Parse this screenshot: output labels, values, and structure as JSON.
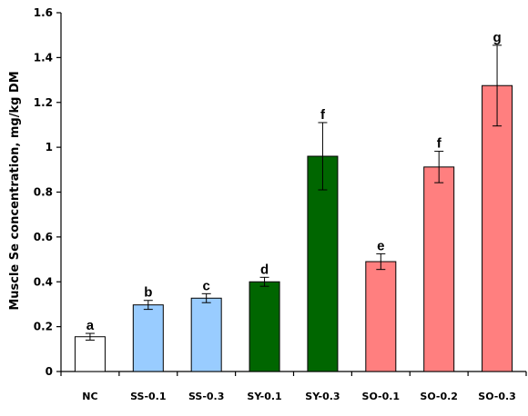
{
  "chart_data": {
    "type": "bar",
    "title": "",
    "xlabel": "",
    "ylabel": "Muscle Se concentration, mg/kg DM",
    "ylim": [
      0,
      1.6
    ],
    "yticks": [
      "0",
      "0.2",
      "0.4",
      "0.6",
      "0.8",
      "1",
      "1.2",
      "1.4",
      "1.6"
    ],
    "grid": false,
    "categories": [
      "NC",
      "SS-0.1",
      "SS-0.3",
      "SY-0.1",
      "SY-0.3",
      "SO-0.1",
      "SO-0.2",
      "SO-0.3"
    ],
    "values": [
      0.155,
      0.297,
      0.327,
      0.4,
      0.96,
      0.49,
      0.912,
      1.275
    ],
    "errors": [
      0.015,
      0.02,
      0.02,
      0.02,
      0.15,
      0.035,
      0.07,
      0.18
    ],
    "significance": [
      "a",
      "b",
      "c",
      "d",
      "f",
      "e",
      "f",
      "g"
    ],
    "colors": [
      "#ffffff",
      "#99ccff",
      "#99ccff",
      "#006600",
      "#006600",
      "#ff7f7f",
      "#ff7f7f",
      "#ff7f7f"
    ],
    "bar_edge_color": "#000000"
  }
}
